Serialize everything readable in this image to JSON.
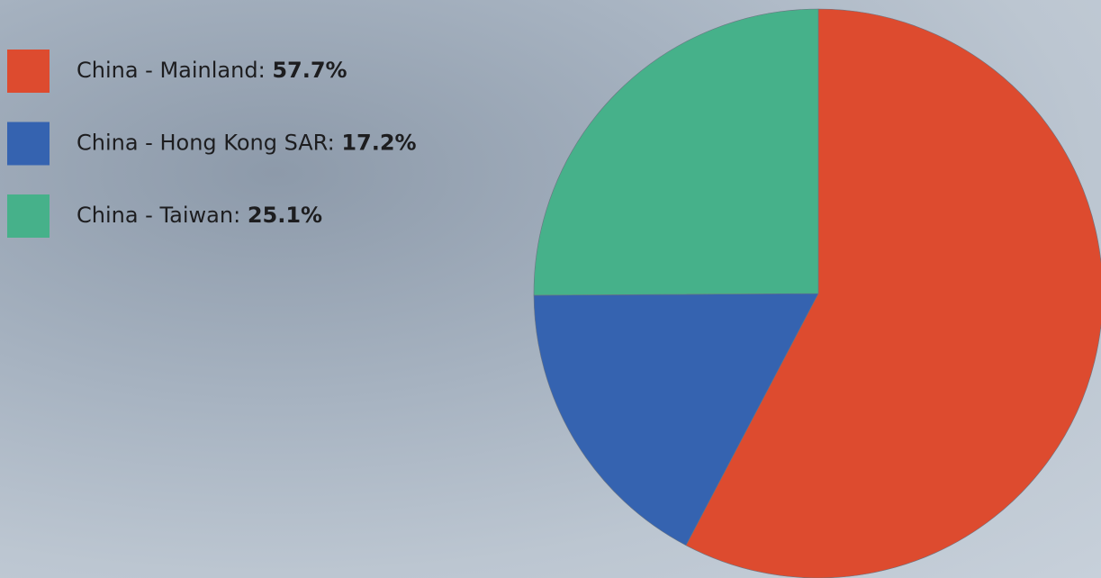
{
  "chart_data": {
    "type": "pie",
    "categories": [
      "China - Mainland:",
      "China - Hong Kong SAR:",
      "China - Taiwan:"
    ],
    "values": [
      57.7,
      17.2,
      25.1
    ],
    "value_labels": [
      "57.7%",
      "17.2%",
      "25.1%"
    ],
    "colors": [
      "#dd4b2f",
      "#3563b0",
      "#46b18a"
    ],
    "legend": "top-left"
  }
}
